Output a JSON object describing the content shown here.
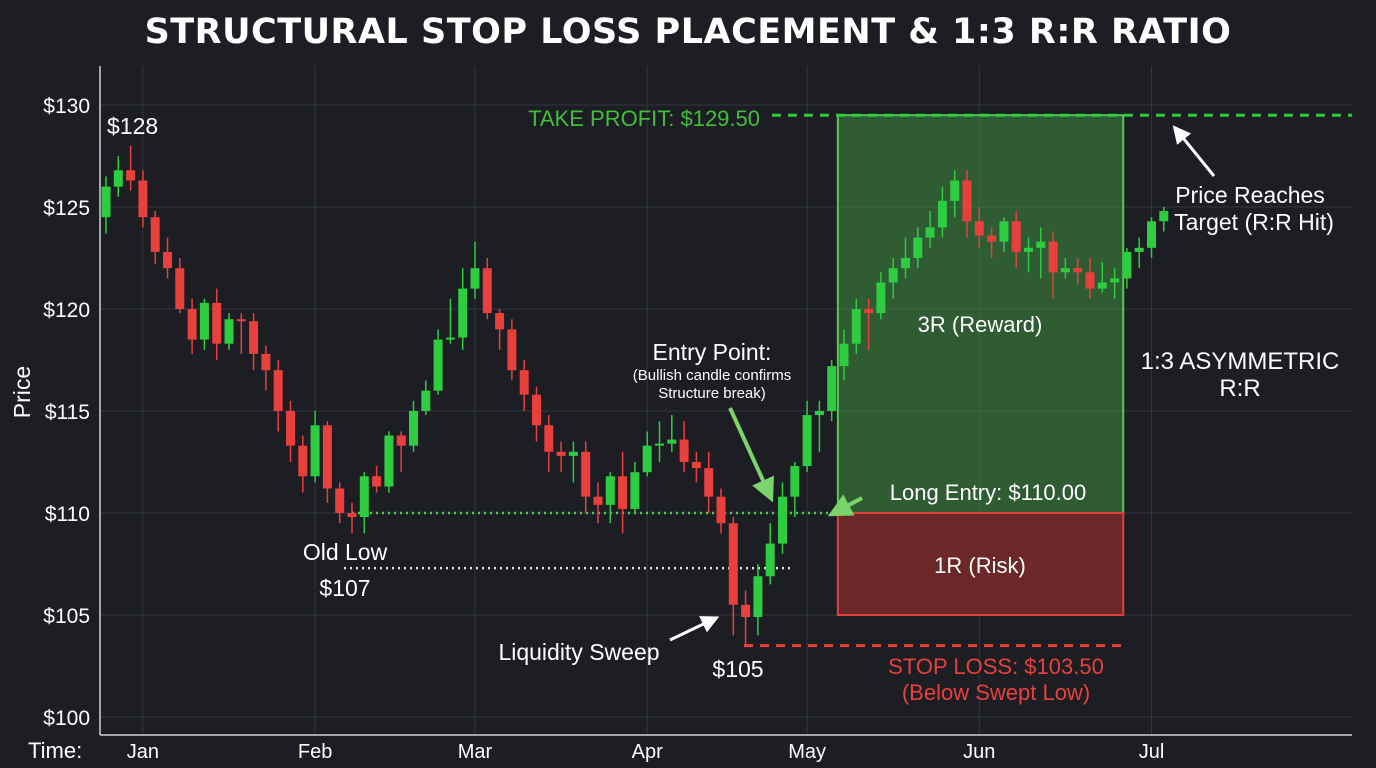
{
  "title": "STRUCTURAL STOP LOSS PLACEMENT & 1:3 R:R RATIO",
  "colors": {
    "background": "#1c1e24",
    "bull": "#2ecc40",
    "bear": "#e8403c",
    "reward_zone": "#3f8f3f",
    "risk_zone": "#7a2a2a",
    "take_profit": "#2ecc40",
    "stop_loss": "#e8403c",
    "text": "#ffffff"
  },
  "chart_data": {
    "type": "candlestick",
    "ylabel": "Price",
    "x_axis_prefix": "Time:",
    "ylim": [
      100,
      131
    ],
    "y_ticks": [
      {
        "value": 100,
        "label": "$100"
      },
      {
        "value": 105,
        "label": "$105"
      },
      {
        "value": 110,
        "label": "$110"
      },
      {
        "value": 115,
        "label": "$115"
      },
      {
        "value": 120,
        "label": "$120"
      },
      {
        "value": 125,
        "label": "$125"
      },
      {
        "value": 130,
        "label": "$130"
      }
    ],
    "x_ticks": [
      {
        "index": 3,
        "label": "Jan"
      },
      {
        "index": 17,
        "label": "Feb"
      },
      {
        "index": 30,
        "label": "Mar"
      },
      {
        "index": 44,
        "label": "Apr"
      },
      {
        "index": 57,
        "label": "May"
      },
      {
        "index": 71,
        "label": "Jun"
      },
      {
        "index": 85,
        "label": "Jul"
      }
    ],
    "x_count": 100,
    "grid": true,
    "candles": [
      {
        "o": 124.5,
        "h": 126.5,
        "l": 123.7,
        "c": 126.0
      },
      {
        "o": 126.0,
        "h": 127.5,
        "l": 125.5,
        "c": 126.8
      },
      {
        "o": 126.8,
        "h": 128.0,
        "l": 125.8,
        "c": 126.3
      },
      {
        "o": 126.3,
        "h": 126.8,
        "l": 124.0,
        "c": 124.5
      },
      {
        "o": 124.5,
        "h": 124.8,
        "l": 122.2,
        "c": 122.8
      },
      {
        "o": 122.8,
        "h": 123.5,
        "l": 121.5,
        "c": 122.0
      },
      {
        "o": 122.0,
        "h": 122.5,
        "l": 119.8,
        "c": 120.0
      },
      {
        "o": 120.0,
        "h": 120.5,
        "l": 117.8,
        "c": 118.5
      },
      {
        "o": 118.5,
        "h": 120.5,
        "l": 118.0,
        "c": 120.3
      },
      {
        "o": 120.3,
        "h": 121.0,
        "l": 117.5,
        "c": 118.3
      },
      {
        "o": 118.3,
        "h": 119.8,
        "l": 118.0,
        "c": 119.5
      },
      {
        "o": 119.5,
        "h": 119.8,
        "l": 117.8,
        "c": 119.4
      },
      {
        "o": 119.4,
        "h": 119.8,
        "l": 117.0,
        "c": 117.8
      },
      {
        "o": 117.8,
        "h": 118.2,
        "l": 116.0,
        "c": 117.0
      },
      {
        "o": 117.0,
        "h": 117.5,
        "l": 114.0,
        "c": 115.0
      },
      {
        "o": 115.0,
        "h": 115.5,
        "l": 112.5,
        "c": 113.3
      },
      {
        "o": 113.3,
        "h": 113.8,
        "l": 111.0,
        "c": 111.8
      },
      {
        "o": 111.8,
        "h": 115.0,
        "l": 111.5,
        "c": 114.3
      },
      {
        "o": 114.3,
        "h": 114.5,
        "l": 110.5,
        "c": 111.2
      },
      {
        "o": 111.2,
        "h": 111.5,
        "l": 109.5,
        "c": 110.0
      },
      {
        "o": 110.0,
        "h": 110.5,
        "l": 109.0,
        "c": 109.8
      },
      {
        "o": 109.8,
        "h": 112.0,
        "l": 109.0,
        "c": 111.8
      },
      {
        "o": 111.8,
        "h": 112.3,
        "l": 111.0,
        "c": 111.3
      },
      {
        "o": 111.3,
        "h": 114.0,
        "l": 111.0,
        "c": 113.8
      },
      {
        "o": 113.8,
        "h": 114.0,
        "l": 112.0,
        "c": 113.3
      },
      {
        "o": 113.3,
        "h": 115.5,
        "l": 113.0,
        "c": 115.0
      },
      {
        "o": 115.0,
        "h": 116.5,
        "l": 114.8,
        "c": 116.0
      },
      {
        "o": 116.0,
        "h": 119.0,
        "l": 115.8,
        "c": 118.5
      },
      {
        "o": 118.5,
        "h": 120.5,
        "l": 118.3,
        "c": 118.6
      },
      {
        "o": 118.6,
        "h": 122.0,
        "l": 118.0,
        "c": 121.0
      },
      {
        "o": 121.0,
        "h": 123.3,
        "l": 120.5,
        "c": 122.0
      },
      {
        "o": 122.0,
        "h": 122.5,
        "l": 119.5,
        "c": 119.8
      },
      {
        "o": 119.8,
        "h": 120.0,
        "l": 118.0,
        "c": 119.0
      },
      {
        "o": 119.0,
        "h": 119.5,
        "l": 116.5,
        "c": 117.0
      },
      {
        "o": 117.0,
        "h": 117.5,
        "l": 115.0,
        "c": 115.8
      },
      {
        "o": 115.8,
        "h": 116.2,
        "l": 113.5,
        "c": 114.3
      },
      {
        "o": 114.3,
        "h": 114.8,
        "l": 112.0,
        "c": 113.0
      },
      {
        "o": 113.0,
        "h": 113.5,
        "l": 112.0,
        "c": 112.8
      },
      {
        "o": 112.8,
        "h": 113.5,
        "l": 111.5,
        "c": 113.0
      },
      {
        "o": 113.0,
        "h": 113.5,
        "l": 110.0,
        "c": 110.8
      },
      {
        "o": 110.8,
        "h": 111.5,
        "l": 109.5,
        "c": 110.4
      },
      {
        "o": 110.4,
        "h": 112.0,
        "l": 109.5,
        "c": 111.8
      },
      {
        "o": 111.8,
        "h": 113.0,
        "l": 109.0,
        "c": 110.2
      },
      {
        "o": 110.2,
        "h": 112.5,
        "l": 110.0,
        "c": 112.0
      },
      {
        "o": 112.0,
        "h": 114.0,
        "l": 111.8,
        "c": 113.3
      },
      {
        "o": 113.3,
        "h": 114.5,
        "l": 112.5,
        "c": 113.4
      },
      {
        "o": 113.4,
        "h": 114.8,
        "l": 113.0,
        "c": 113.6
      },
      {
        "o": 113.6,
        "h": 114.5,
        "l": 112.0,
        "c": 112.5
      },
      {
        "o": 112.5,
        "h": 113.0,
        "l": 111.5,
        "c": 112.2
      },
      {
        "o": 112.2,
        "h": 113.0,
        "l": 110.0,
        "c": 110.8
      },
      {
        "o": 110.8,
        "h": 111.2,
        "l": 109.0,
        "c": 109.5
      },
      {
        "o": 109.5,
        "h": 109.8,
        "l": 104.0,
        "c": 105.5
      },
      {
        "o": 105.5,
        "h": 106.2,
        "l": 103.5,
        "c": 104.9
      },
      {
        "o": 104.9,
        "h": 107.5,
        "l": 104.0,
        "c": 106.9
      },
      {
        "o": 106.9,
        "h": 109.5,
        "l": 106.5,
        "c": 108.5
      },
      {
        "o": 108.5,
        "h": 111.5,
        "l": 108.0,
        "c": 110.8
      },
      {
        "o": 110.8,
        "h": 112.5,
        "l": 109.8,
        "c": 112.3
      },
      {
        "o": 112.3,
        "h": 115.5,
        "l": 112.0,
        "c": 114.8
      },
      {
        "o": 114.8,
        "h": 115.5,
        "l": 113.0,
        "c": 115.0
      },
      {
        "o": 115.0,
        "h": 117.5,
        "l": 114.5,
        "c": 117.2
      },
      {
        "o": 117.2,
        "h": 119.0,
        "l": 116.5,
        "c": 118.3
      },
      {
        "o": 118.3,
        "h": 120.5,
        "l": 117.8,
        "c": 120.0
      },
      {
        "o": 120.0,
        "h": 120.5,
        "l": 118.0,
        "c": 119.8
      },
      {
        "o": 119.8,
        "h": 121.8,
        "l": 119.5,
        "c": 121.3
      },
      {
        "o": 121.3,
        "h": 122.5,
        "l": 120.5,
        "c": 122.0
      },
      {
        "o": 122.0,
        "h": 123.5,
        "l": 121.5,
        "c": 122.5
      },
      {
        "o": 122.5,
        "h": 124.0,
        "l": 122.0,
        "c": 123.5
      },
      {
        "o": 123.5,
        "h": 124.8,
        "l": 123.0,
        "c": 124.0
      },
      {
        "o": 124.0,
        "h": 126.0,
        "l": 123.5,
        "c": 125.3
      },
      {
        "o": 125.3,
        "h": 126.8,
        "l": 124.5,
        "c": 126.3
      },
      {
        "o": 126.3,
        "h": 126.8,
        "l": 123.5,
        "c": 124.3
      },
      {
        "o": 124.3,
        "h": 125.0,
        "l": 123.0,
        "c": 123.6
      },
      {
        "o": 123.6,
        "h": 124.0,
        "l": 122.5,
        "c": 123.3
      },
      {
        "o": 123.3,
        "h": 124.5,
        "l": 122.8,
        "c": 124.3
      },
      {
        "o": 124.3,
        "h": 124.8,
        "l": 122.0,
        "c": 122.8
      },
      {
        "o": 122.8,
        "h": 123.5,
        "l": 121.8,
        "c": 123.0
      },
      {
        "o": 123.0,
        "h": 124.0,
        "l": 121.5,
        "c": 123.3
      },
      {
        "o": 123.3,
        "h": 123.8,
        "l": 120.5,
        "c": 121.8
      },
      {
        "o": 121.8,
        "h": 122.5,
        "l": 121.5,
        "c": 122.0
      },
      {
        "o": 122.0,
        "h": 122.5,
        "l": 121.2,
        "c": 121.8
      },
      {
        "o": 121.8,
        "h": 122.5,
        "l": 120.5,
        "c": 121.0
      },
      {
        "o": 121.0,
        "h": 122.3,
        "l": 120.8,
        "c": 121.3
      },
      {
        "o": 121.3,
        "h": 122.0,
        "l": 120.5,
        "c": 121.5
      },
      {
        "o": 121.5,
        "h": 123.0,
        "l": 121.0,
        "c": 122.8
      },
      {
        "o": 122.8,
        "h": 123.5,
        "l": 122.0,
        "c": 123.0
      },
      {
        "o": 123.0,
        "h": 124.5,
        "l": 122.5,
        "c": 124.3
      },
      {
        "o": 124.3,
        "h": 125.0,
        "l": 123.8,
        "c": 124.8
      }
    ],
    "trade": {
      "take_profit": 129.5,
      "entry": 110.0,
      "stop_loss": 103.5,
      "reward_top": 129.5,
      "risk_bottom": 105.0,
      "old_low": 107.3
    }
  },
  "annotations": {
    "high_label": "$128",
    "take_profit_label": "TAKE PROFIT: $129.50",
    "reward_label": "3R (Reward)",
    "asymmetric_label_line1": "1:3 ASYMMETRIC",
    "asymmetric_label_line2": "R:R",
    "entry_title": "Entry Point:",
    "entry_sub1": "(Bullish candle confirms",
    "entry_sub2": "Structure break)",
    "long_entry_label": "Long Entry: $110.00",
    "risk_label": "1R (Risk)",
    "old_low_label": "Old Low",
    "old_low_price": "$107",
    "liquidity_sweep_label": "Liquidity Sweep",
    "sweep_price": "$105",
    "stop_loss_line1": "STOP LOSS: $103.50",
    "stop_loss_line2": "(Below Swept Low)",
    "target_line1": "Price Reaches",
    "target_line2": "Target (R:R Hit)"
  }
}
